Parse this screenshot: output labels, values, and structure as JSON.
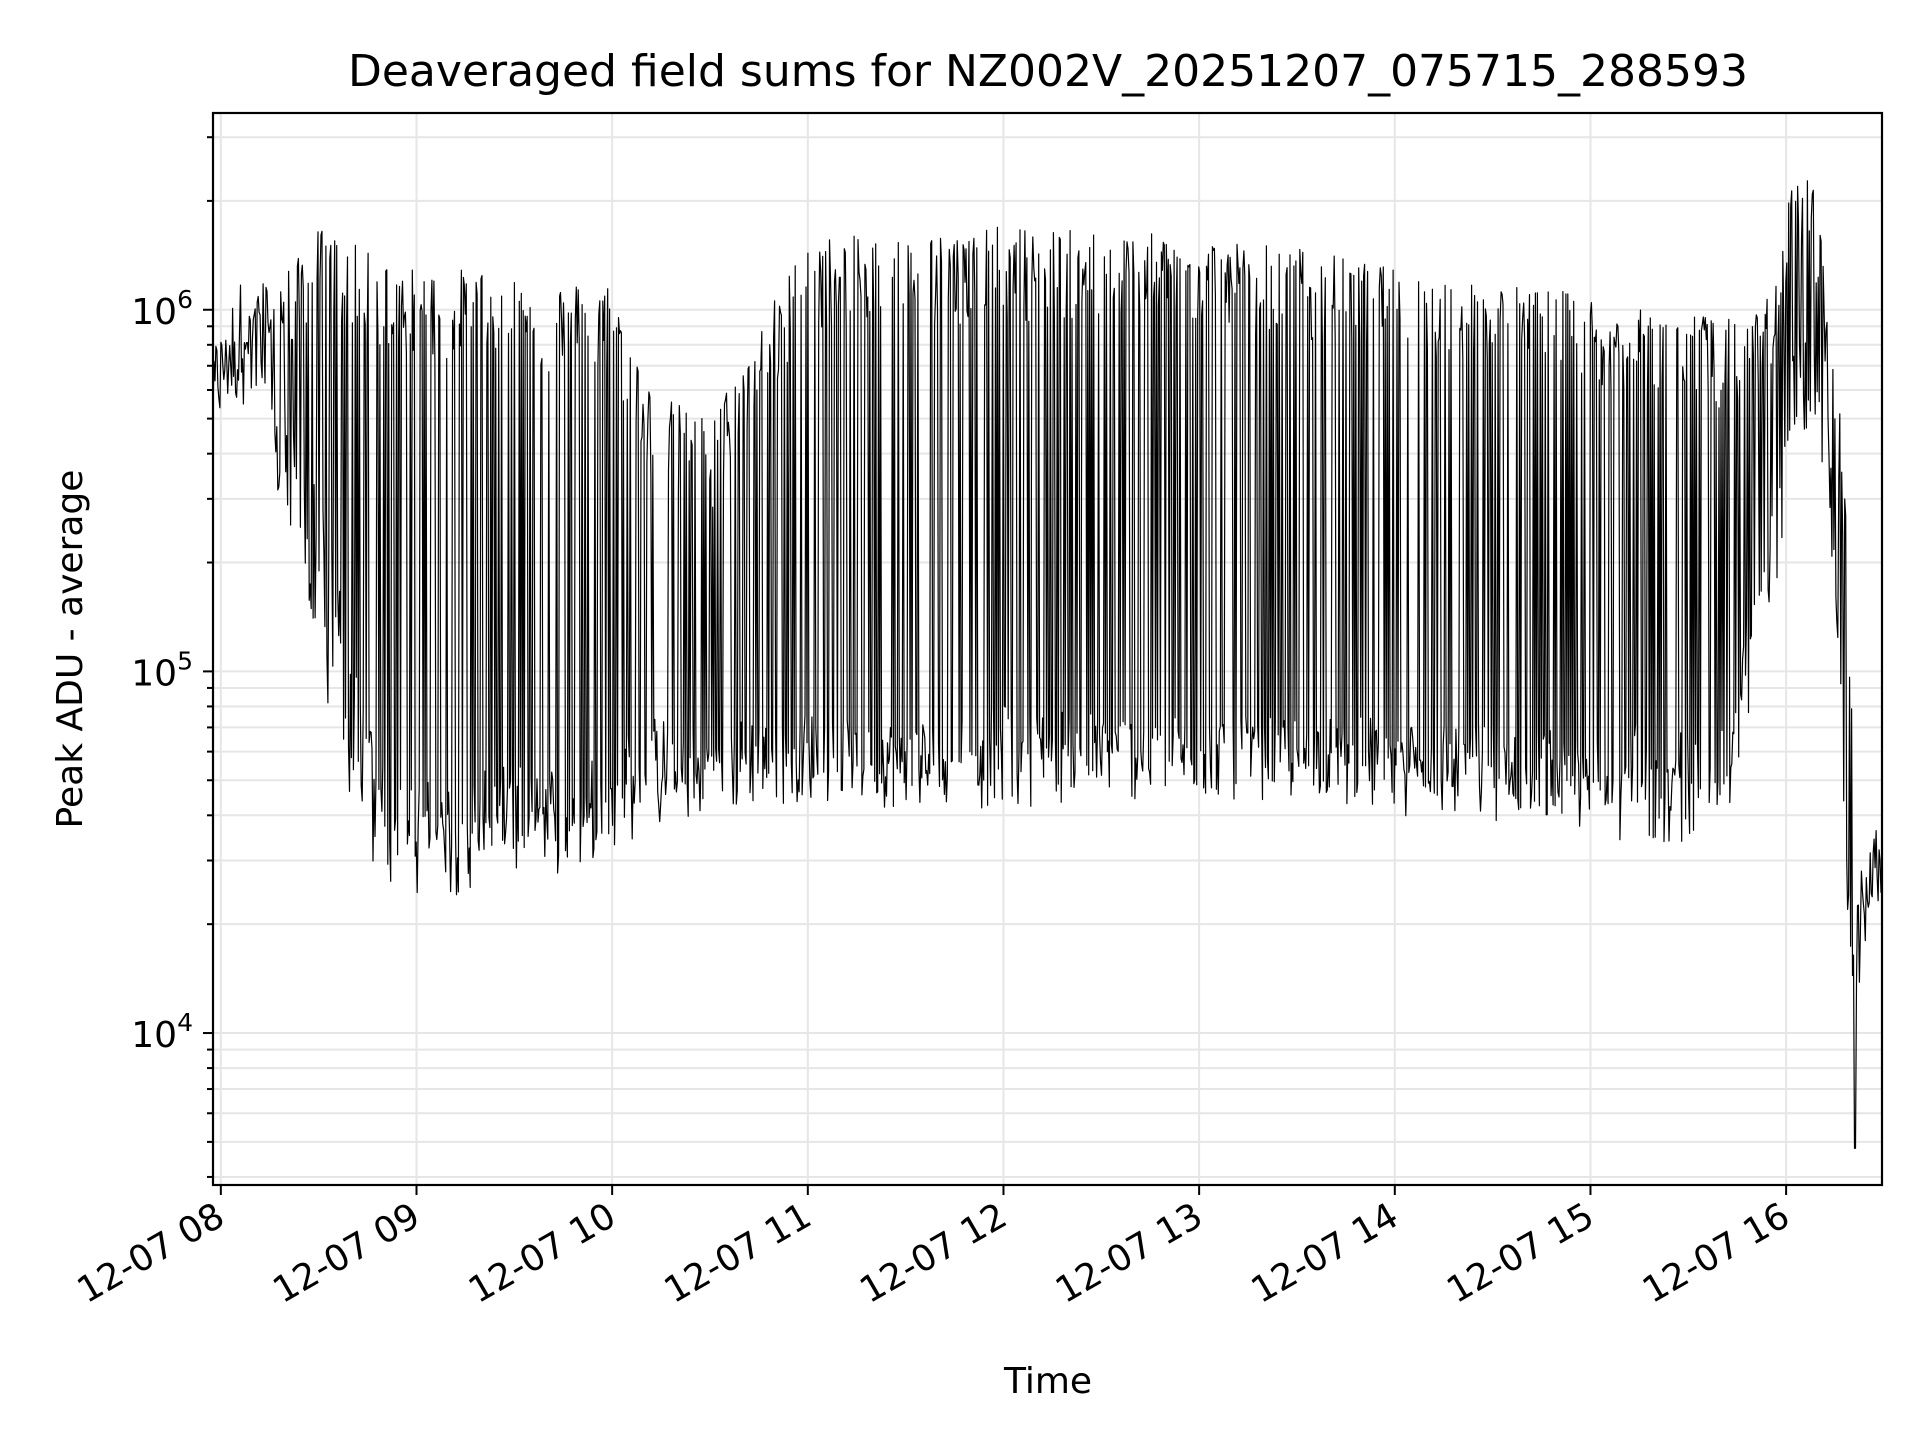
{
  "chart_data": {
    "type": "line",
    "title": "Deaveraged field sums for NZ002V_20251207_075715_288593",
    "xlabel": "Time",
    "ylabel": "Peak ADU - average",
    "yscale": "log",
    "ylim": [
      3800,
      3500000
    ],
    "xlim_hours": [
      7.96,
      16.49
    ],
    "grid": true,
    "x_ticks": [
      {
        "value": 8,
        "label": "12-07 08"
      },
      {
        "value": 9,
        "label": "12-07 09"
      },
      {
        "value": 10,
        "label": "12-07 10"
      },
      {
        "value": 11,
        "label": "12-07 11"
      },
      {
        "value": 12,
        "label": "12-07 12"
      },
      {
        "value": 13,
        "label": "12-07 13"
      },
      {
        "value": 14,
        "label": "12-07 14"
      },
      {
        "value": 15,
        "label": "12-07 15"
      },
      {
        "value": 16,
        "label": "12-07 16"
      }
    ],
    "y_ticks": [
      {
        "value": 10000,
        "base": "10",
        "exp": "4"
      },
      {
        "value": 100000,
        "base": "10",
        "exp": "5"
      },
      {
        "value": 1000000,
        "base": "10",
        "exp": "6"
      }
    ],
    "series": [
      {
        "name": "Peak ADU - average",
        "color": "#000000",
        "envelope_hours": [
          7.96,
          8.1,
          8.2,
          8.3,
          8.4,
          8.5,
          8.6,
          8.7,
          8.8,
          9.0,
          9.2,
          9.4,
          9.6,
          9.8,
          10.0,
          10.2,
          10.5,
          11.0,
          11.5,
          12.0,
          12.5,
          13.0,
          13.5,
          14.0,
          14.5,
          15.0,
          15.2,
          15.5,
          15.7,
          15.8,
          15.95,
          16.05,
          16.15,
          16.22,
          16.28,
          16.32,
          16.36,
          16.45,
          16.49
        ],
        "envelope_peak": [
          800000,
          1200000,
          1200000,
          1300000,
          1400000,
          1700000,
          1600000,
          1500000,
          1400000,
          1300000,
          1300000,
          1300000,
          1200000,
          1200000,
          1200000,
          600000,
          500000,
          1600000,
          1600000,
          1700000,
          1650000,
          1600000,
          1500000,
          1300000,
          1200000,
          1100000,
          1000000,
          1000000,
          950000,
          900000,
          1200000,
          2700000,
          2200000,
          1000000,
          500000,
          200000,
          22000,
          40000,
          50000
        ],
        "envelope_low": [
          550000,
          700000,
          600000,
          350000,
          200000,
          130000,
          70000,
          45000,
          32000,
          30000,
          30000,
          33000,
          32000,
          35000,
          40000,
          45000,
          50000,
          55000,
          52000,
          52000,
          55000,
          55000,
          55000,
          50000,
          48000,
          45000,
          42000,
          42000,
          45000,
          90000,
          220000,
          550000,
          500000,
          300000,
          80000,
          18000,
          17000,
          25000,
          28000
        ],
        "baseline_hours": [
          7.96,
          8.1,
          8.2,
          8.3,
          8.4,
          8.5,
          8.6,
          8.7,
          8.8,
          9.0,
          9.2,
          9.5,
          9.8,
          10.0,
          10.2,
          10.5,
          11.0,
          11.5,
          12.0,
          12.5,
          13.0,
          13.5,
          14.0,
          14.5,
          15.0,
          15.2,
          15.5,
          15.7,
          15.8,
          15.95,
          16.05,
          16.15,
          16.22,
          16.28,
          16.32,
          16.36,
          16.45,
          16.49
        ],
        "baseline": [
          650000,
          750000,
          1000000,
          600000,
          350000,
          250000,
          150000,
          80000,
          50000,
          40000,
          40000,
          45000,
          45000,
          50000,
          60000,
          58000,
          62000,
          58000,
          65000,
          62000,
          60000,
          60000,
          60000,
          58000,
          55000,
          60000,
          55000,
          55000,
          120000,
          300000,
          700000,
          650000,
          400000,
          80000,
          20000,
          20000,
          32000,
          30000
        ],
        "min_point": {
          "hour": 16.35,
          "value": 4800
        }
      }
    ]
  }
}
